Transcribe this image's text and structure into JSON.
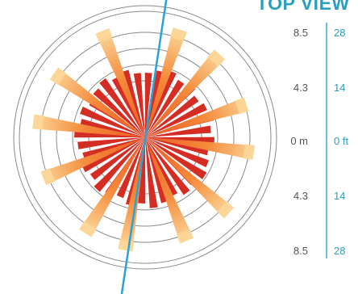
{
  "title": "TOP VIEW",
  "scale": {
    "meters": [
      "8.5",
      "4.3",
      "0 m",
      "4.3",
      "8.5"
    ],
    "feet": [
      "28",
      "14",
      "0 ft",
      "14",
      "28"
    ]
  },
  "colors": {
    "ring": "#8a8a8a",
    "inner_wedge": "#d42d24",
    "outer_ray_base": "#f0642a",
    "outer_ray_tip": "#fbd79a",
    "axis_line": "#2aa3d4",
    "accent": "#2b9fc0"
  },
  "diagram": {
    "rings": 6,
    "inner_wedge_count": 36,
    "outer_ray_count": 12
  }
}
